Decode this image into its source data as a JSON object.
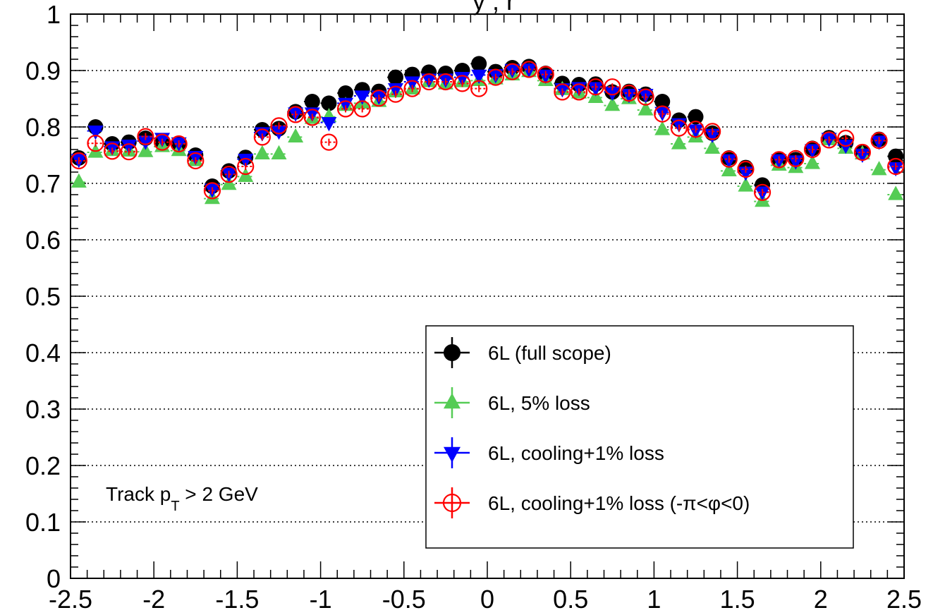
{
  "title_fragment": "y , r",
  "chart_data": {
    "type": "scatter",
    "title": "",
    "xlabel": "",
    "ylabel": "",
    "xlim": [
      -2.5,
      2.5
    ],
    "ylim": [
      0,
      1
    ],
    "grid": "horizontal dotted",
    "legend_position": "bottom-right",
    "annotation": {
      "prefix": "Track p",
      "subscript": "T",
      "suffix": " > 2 GeV"
    },
    "x_ticks": [
      {
        "value": -2.5,
        "label": "-2.5"
      },
      {
        "value": -2,
        "label": "-2"
      },
      {
        "value": -1.5,
        "label": "-1.5"
      },
      {
        "value": -1,
        "label": "-1"
      },
      {
        "value": -0.5,
        "label": "-0.5"
      },
      {
        "value": 0,
        "label": "0"
      },
      {
        "value": 0.5,
        "label": "0.5"
      },
      {
        "value": 1,
        "label": "1"
      },
      {
        "value": 1.5,
        "label": "1.5"
      },
      {
        "value": 2,
        "label": "2"
      },
      {
        "value": 2.5,
        "label": "2.5"
      }
    ],
    "y_ticks": [
      {
        "value": 0,
        "label": "0"
      },
      {
        "value": 0.1,
        "label": "0.1"
      },
      {
        "value": 0.2,
        "label": "0.2"
      },
      {
        "value": 0.3,
        "label": "0.3"
      },
      {
        "value": 0.4,
        "label": "0.4"
      },
      {
        "value": 0.5,
        "label": "0.5"
      },
      {
        "value": 0.6,
        "label": "0.6"
      },
      {
        "value": 0.7,
        "label": "0.7"
      },
      {
        "value": 0.8,
        "label": "0.8"
      },
      {
        "value": 0.9,
        "label": "0.9"
      },
      {
        "value": 1,
        "label": "1"
      }
    ],
    "x": [
      -2.45,
      -2.35,
      -2.25,
      -2.15,
      -2.05,
      -1.95,
      -1.85,
      -1.75,
      -1.65,
      -1.55,
      -1.45,
      -1.35,
      -1.25,
      -1.15,
      -1.05,
      -0.95,
      -0.85,
      -0.75,
      -0.65,
      -0.55,
      -0.45,
      -0.35,
      -0.25,
      -0.15,
      -0.05,
      0.05,
      0.15,
      0.25,
      0.35,
      0.45,
      0.55,
      0.65,
      0.75,
      0.85,
      0.95,
      1.05,
      1.15,
      1.25,
      1.35,
      1.45,
      1.55,
      1.65,
      1.75,
      1.85,
      1.95,
      2.05,
      2.15,
      2.25,
      2.35,
      2.45
    ],
    "series": [
      {
        "name": "6L (full scope)",
        "marker": "filled-circle",
        "color": "#000000",
        "values": [
          0.745,
          0.8,
          0.77,
          0.773,
          0.78,
          0.773,
          0.77,
          0.75,
          0.695,
          0.722,
          0.746,
          0.795,
          0.797,
          0.827,
          0.845,
          0.842,
          0.86,
          0.866,
          0.863,
          0.888,
          0.893,
          0.897,
          0.895,
          0.9,
          0.912,
          0.898,
          0.905,
          0.907,
          0.895,
          0.877,
          0.875,
          0.876,
          0.862,
          0.863,
          0.858,
          0.845,
          0.812,
          0.818,
          0.789,
          0.745,
          0.728,
          0.697,
          0.743,
          0.742,
          0.762,
          0.781,
          0.772,
          0.756,
          0.778,
          0.748
        ]
      },
      {
        "name": "6L, 5% loss",
        "marker": "filled-triangle-up",
        "color": "#55cc55",
        "values": [
          0.702,
          0.755,
          0.758,
          0.757,
          0.756,
          0.765,
          0.758,
          0.74,
          0.673,
          0.698,
          0.712,
          0.752,
          0.752,
          0.782,
          0.815,
          0.818,
          0.838,
          0.842,
          0.845,
          0.862,
          0.867,
          0.88,
          0.876,
          0.88,
          0.882,
          0.885,
          0.892,
          0.898,
          0.882,
          0.866,
          0.86,
          0.852,
          0.838,
          0.85,
          0.83,
          0.795,
          0.77,
          0.782,
          0.762,
          0.722,
          0.695,
          0.668,
          0.732,
          0.728,
          0.735,
          0.777,
          0.762,
          0.752,
          0.724,
          0.68
        ]
      },
      {
        "name": "6L, cooling+1% loss",
        "marker": "filled-triangle-down",
        "color": "#0000ff",
        "values": [
          0.743,
          0.793,
          0.765,
          0.768,
          0.775,
          0.78,
          0.772,
          0.748,
          0.69,
          0.718,
          0.743,
          0.79,
          0.793,
          0.825,
          0.825,
          0.808,
          0.842,
          0.855,
          0.855,
          0.868,
          0.88,
          0.885,
          0.885,
          0.888,
          0.892,
          0.893,
          0.902,
          0.903,
          0.892,
          0.868,
          0.87,
          0.87,
          0.862,
          0.858,
          0.858,
          0.826,
          0.806,
          0.795,
          0.787,
          0.742,
          0.72,
          0.685,
          0.742,
          0.74,
          0.76,
          0.78,
          0.768,
          0.752,
          0.775,
          0.728
        ]
      },
      {
        "name": "6L, cooling+1% loss (-π<φ<0)",
        "marker": "open-circle",
        "color": "#ff0000",
        "values": [
          0.74,
          0.771,
          0.757,
          0.756,
          0.783,
          0.773,
          0.77,
          0.74,
          0.687,
          0.716,
          0.73,
          0.782,
          0.802,
          0.822,
          0.817,
          0.773,
          0.832,
          0.832,
          0.851,
          0.858,
          0.868,
          0.88,
          0.88,
          0.877,
          0.868,
          0.888,
          0.898,
          0.902,
          0.893,
          0.862,
          0.862,
          0.871,
          0.871,
          0.86,
          0.853,
          0.823,
          0.798,
          0.796,
          0.792,
          0.743,
          0.725,
          0.684,
          0.742,
          0.744,
          0.76,
          0.777,
          0.78,
          0.755,
          0.776,
          0.73
        ]
      }
    ]
  }
}
